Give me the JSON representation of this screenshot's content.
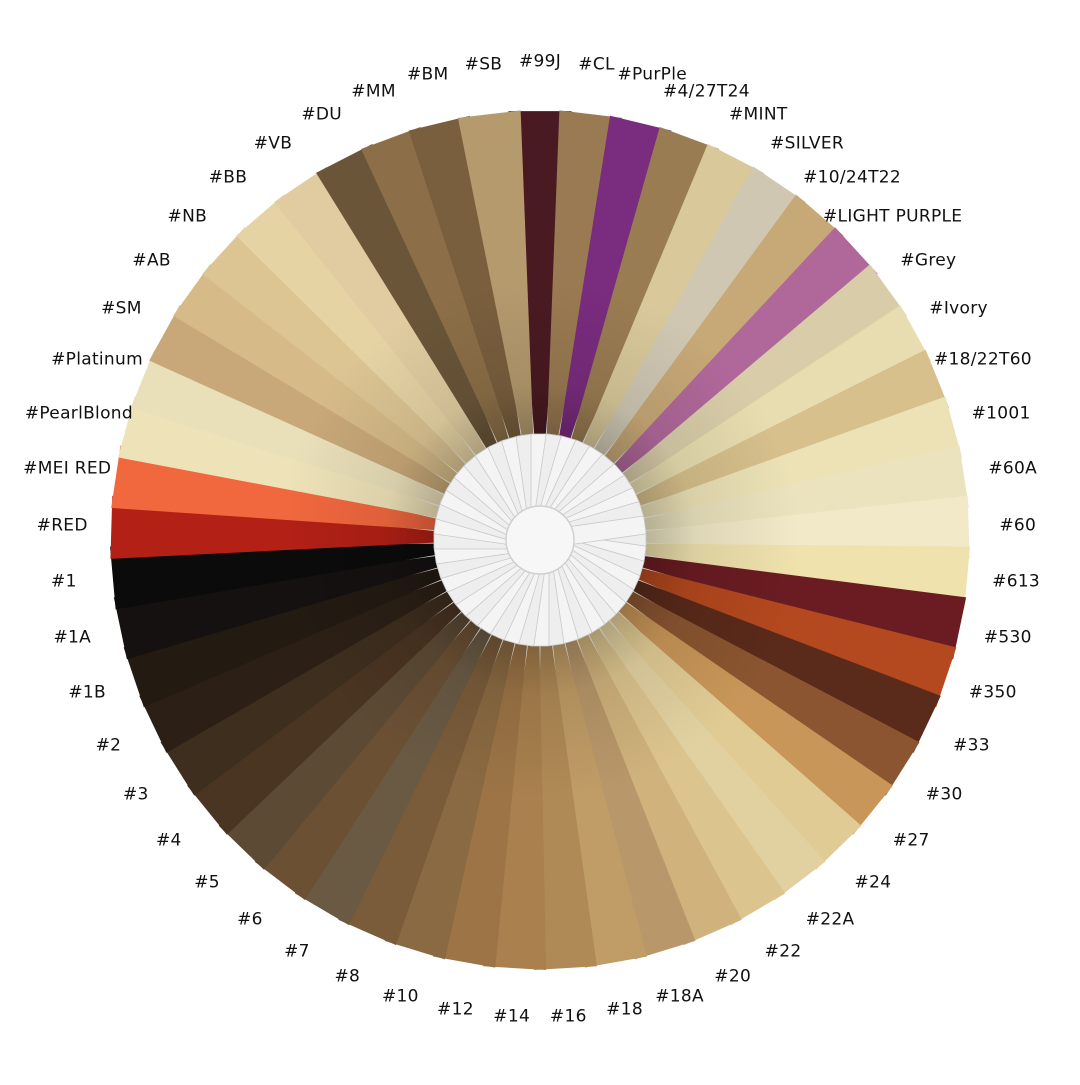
{
  "swatches": [
    {
      "label": "#99J",
      "color": "#4a1a22"
    },
    {
      "label": "#CL",
      "color": "#9a7a52"
    },
    {
      "label": "#PurPle",
      "color": "#7a2c7e"
    },
    {
      "label": "#4/27T24",
      "color": "#9a7c52"
    },
    {
      "label": "#MINT",
      "color": "#d8c89a"
    },
    {
      "label": "#SILVER",
      "color": "#cfc7b2"
    },
    {
      "label": "#10/24T22",
      "color": "#c7a877"
    },
    {
      "label": "#LIGHT PURPLE",
      "color": "#b0689a"
    },
    {
      "label": "#Grey",
      "color": "#d9cda9"
    },
    {
      "label": "#Ivory",
      "color": "#e8ddb0"
    },
    {
      "label": "#18/22T60",
      "color": "#d7c08c"
    },
    {
      "label": "#1001",
      "color": "#ece2b6"
    },
    {
      "label": "#60A",
      "color": "#ebe3be"
    },
    {
      "label": "#60",
      "color": "#f1e9c7"
    },
    {
      "label": "#613",
      "color": "#efe2ad"
    },
    {
      "label": "#530",
      "color": "#6a1c22"
    },
    {
      "label": "#350",
      "color": "#b4481e"
    },
    {
      "label": "#33",
      "color": "#5a2a1a"
    },
    {
      "label": "#30",
      "color": "#8a5530"
    },
    {
      "label": "#27",
      "color": "#c89658"
    },
    {
      "label": "#24",
      "color": "#e1cb94"
    },
    {
      "label": "#22A",
      "color": "#e2d1a0"
    },
    {
      "label": "#22",
      "color": "#dcc48e"
    },
    {
      "label": "#20",
      "color": "#cfb27c"
    },
    {
      "label": "#18A",
      "color": "#b8976a"
    },
    {
      "label": "#18",
      "color": "#c09c66"
    },
    {
      "label": "#16",
      "color": "#b08a56"
    },
    {
      "label": "#14",
      "color": "#a9804e"
    },
    {
      "label": "#12",
      "color": "#9c7446"
    },
    {
      "label": "#10",
      "color": "#8a6a42"
    },
    {
      "label": "#8",
      "color": "#7a5c3a"
    },
    {
      "label": "#7",
      "color": "#6a5a44"
    },
    {
      "label": "#6",
      "color": "#6b5034"
    },
    {
      "label": "#5",
      "color": "#5c4a34"
    },
    {
      "label": "#4",
      "color": "#4a3422"
    },
    {
      "label": "#3",
      "color": "#3e2e1e"
    },
    {
      "label": "#2",
      "color": "#2c2016"
    },
    {
      "label": "#1B",
      "color": "#231a12"
    },
    {
      "label": "#1A",
      "color": "#151110"
    },
    {
      "label": "#1",
      "color": "#0c0b0b"
    },
    {
      "label": "#RED",
      "color": "#b32016"
    },
    {
      "label": "#MEI RED",
      "color": "#f2683e"
    },
    {
      "label": "#PearlBlond",
      "color": "#eee2b8"
    },
    {
      "label": "#Platinum",
      "color": "#e9dfb9"
    },
    {
      "label": "#SM",
      "color": "#c8a878"
    },
    {
      "label": "#AB",
      "color": "#d6bb88"
    },
    {
      "label": "#NB",
      "color": "#dcc493"
    },
    {
      "label": "#BB",
      "color": "#e6d3a4"
    },
    {
      "label": "#VB",
      "color": "#e0cca0"
    },
    {
      "label": "#DU",
      "color": "#6a5538"
    },
    {
      "label": "#MM",
      "color": "#8c6f48"
    },
    {
      "label": "#BM",
      "color": "#7a5f3e"
    },
    {
      "label": "#SB",
      "color": "#b59a6e"
    }
  ],
  "colors": {
    "background": "#ffffff",
    "label_text": "#111111",
    "hub_card": "#eeeeee"
  }
}
